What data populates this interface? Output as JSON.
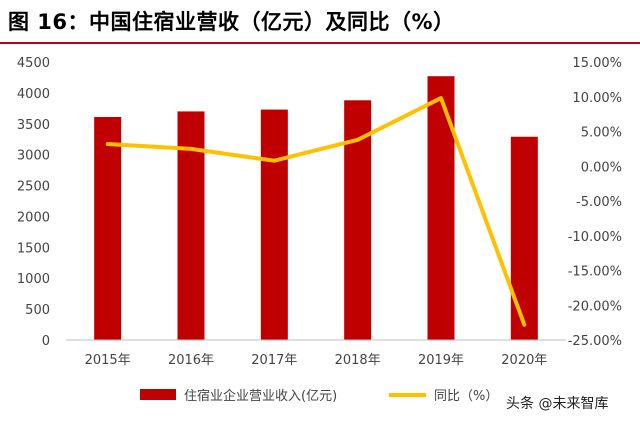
{
  "title": "图 16：中国住宿业营收（亿元）及同比（%）",
  "watermark": "头条 @未来智库",
  "colors": {
    "bar": "#c00000",
    "line": "#ffc000",
    "title_rule": "#b8001f"
  },
  "chart_data": {
    "type": "bar",
    "categories": [
      "2015年",
      "2016年",
      "2017年",
      "2018年",
      "2019年",
      "2020年"
    ],
    "series": [
      {
        "name": "住宿业企业营业收入(亿元)",
        "type": "bar",
        "axis": "left",
        "values": [
          3610,
          3700,
          3730,
          3880,
          4270,
          3290
        ]
      },
      {
        "name": "同比（%）",
        "type": "line",
        "axis": "right",
        "values": [
          3.2,
          2.5,
          0.8,
          3.8,
          9.8,
          -22.8
        ]
      }
    ],
    "y_left": {
      "min": 0,
      "max": 4500,
      "step": 500,
      "ticks": [
        "0",
        "500",
        "1000",
        "1500",
        "2000",
        "2500",
        "3000",
        "3500",
        "4000",
        "4500"
      ]
    },
    "y_right": {
      "min": -25,
      "max": 15,
      "step": 5,
      "ticks": [
        "-25.00%",
        "-20.00%",
        "-15.00%",
        "-10.00%",
        "-5.00%",
        "0.00%",
        "5.00%",
        "10.00%",
        "15.00%"
      ]
    },
    "grid": false,
    "legend": "bottom"
  }
}
